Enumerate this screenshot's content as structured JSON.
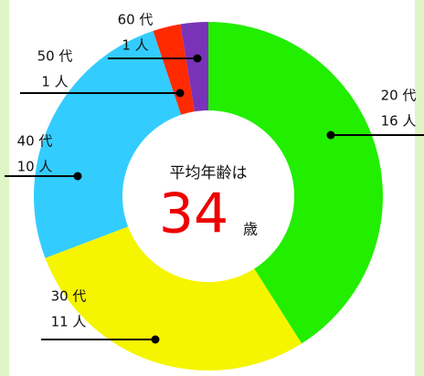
{
  "chart_data": {
    "type": "donut",
    "categories": [
      "20 代",
      "30 代",
      "40 代",
      "50 代",
      "60 代"
    ],
    "values": [
      16,
      11,
      10,
      1,
      1
    ],
    "value_labels": [
      "16 人",
      "11 人",
      "10 人",
      "1 人",
      "1 人"
    ],
    "colors": [
      "#22ee00",
      "#f5f500",
      "#33ccff",
      "#ff2a00",
      "#7a33b8"
    ],
    "center_label": "平均年齢は",
    "center_value": 34,
    "center_unit": "歳"
  }
}
